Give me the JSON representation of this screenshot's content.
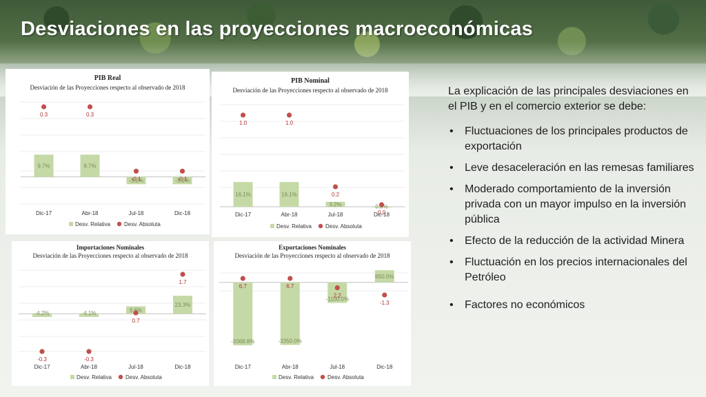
{
  "page": {
    "title": "Desviaciones en las proyecciones macroeconómicas"
  },
  "explanation": {
    "intro": "La explicación de las principales desviaciones en el PIB y en el comercio exterior se debe:",
    "bullets": [
      "Fluctuaciones de los principales productos de exportación",
      "Leve desaceleración en las remesas familiares",
      "Moderado comportamiento de la inversión privada con un mayor impulso en la inversión pública",
      "Efecto de la reducción de la actividad Minera",
      "Fluctuación en los precios internacionales del Petróleo",
      "Factores no económicos"
    ]
  },
  "colors": {
    "bar": "#c5d9a6",
    "bar_label": "#7a8a5a",
    "dot": "#c0504d",
    "grid": "#d9d9d9"
  },
  "chart_data": [
    {
      "type": "bar",
      "title": "PIB Real",
      "subtitle": "Desviación de las Proyecciones respecto al observado de 2018",
      "categories": [
        "Dic-17",
        "Abr-18",
        "Jul-18",
        "Dic-18"
      ],
      "series": [
        {
          "name": "Desv. Relativa",
          "kind": "bar",
          "values": [
            9.7,
            9.7,
            -3.2,
            -3.2
          ],
          "labels": [
            "9.7%",
            "9.7%",
            "-3.2%",
            "-3.2%"
          ]
        },
        {
          "name": "Desv. Absoluta",
          "kind": "dot",
          "values": [
            0.3,
            0.3,
            -0.1,
            -0.1
          ],
          "labels": [
            "0.3",
            "0.3",
            "-0.1",
            "-0.1"
          ]
        }
      ],
      "legend": "bottom"
    },
    {
      "type": "bar",
      "title": "PIB Nominal",
      "subtitle": "Desviación de las Proyecciones respecto al observado de 2018",
      "categories": [
        "Dic-17",
        "Abr-18",
        "Jul-18",
        "Dic-18"
      ],
      "series": [
        {
          "name": "Desv. Relativa",
          "kind": "bar",
          "values": [
            16.1,
            16.1,
            3.2,
            0.0
          ],
          "labels": [
            "16.1%",
            "16.1%",
            "3.2%",
            "0.0%"
          ]
        },
        {
          "name": "Desv. Absoluta",
          "kind": "dot",
          "values": [
            1.0,
            1.0,
            0.2,
            0.0
          ],
          "labels": [
            "1.0",
            "1.0",
            "0.2",
            "0.0"
          ]
        }
      ],
      "legend": "bottom"
    },
    {
      "type": "bar",
      "title": "Importaciones Nominales",
      "subtitle": "Desviación de las Proyecciones respecto al observado de 2018",
      "categories": [
        "Dic-17",
        "Abr-18",
        "Jul-18",
        "Dic-18"
      ],
      "series": [
        {
          "name": "Desv. Relativa",
          "kind": "bar",
          "values": [
            -4.2,
            -4.1,
            9.6,
            23.3
          ],
          "labels": [
            "-4.2%",
            "-4.1%",
            "9.6%",
            "23.3%"
          ]
        },
        {
          "name": "Desv. Absoluta",
          "kind": "dot",
          "values": [
            -0.3,
            -0.3,
            0.7,
            1.7
          ],
          "labels": [
            "-0.3",
            "-0.3",
            "0.7",
            "1.7"
          ]
        }
      ],
      "legend": "bottom"
    },
    {
      "type": "bar",
      "title": "Exportaciones Nominales",
      "subtitle": "Desviación de las Proyecciones respecto al observado de 2018",
      "categories": [
        "Dic-17",
        "Abr-18",
        "Jul-18",
        "Dic-18"
      ],
      "series": [
        {
          "name": "Desv. Relativa",
          "kind": "bar",
          "values": [
            -3368.8,
            -3350.0,
            -1100.0,
            650.0
          ],
          "labels": [
            "-3368.8%",
            "-3350.0%",
            "-1100.0%",
            "650.0%"
          ]
        },
        {
          "name": "Desv. Absoluta",
          "kind": "dot",
          "values": [
            6.7,
            6.7,
            2.2,
            -1.3
          ],
          "labels": [
            "6.7",
            "6.7",
            "2.2",
            "-1.3"
          ]
        }
      ],
      "legend": "bottom"
    }
  ]
}
